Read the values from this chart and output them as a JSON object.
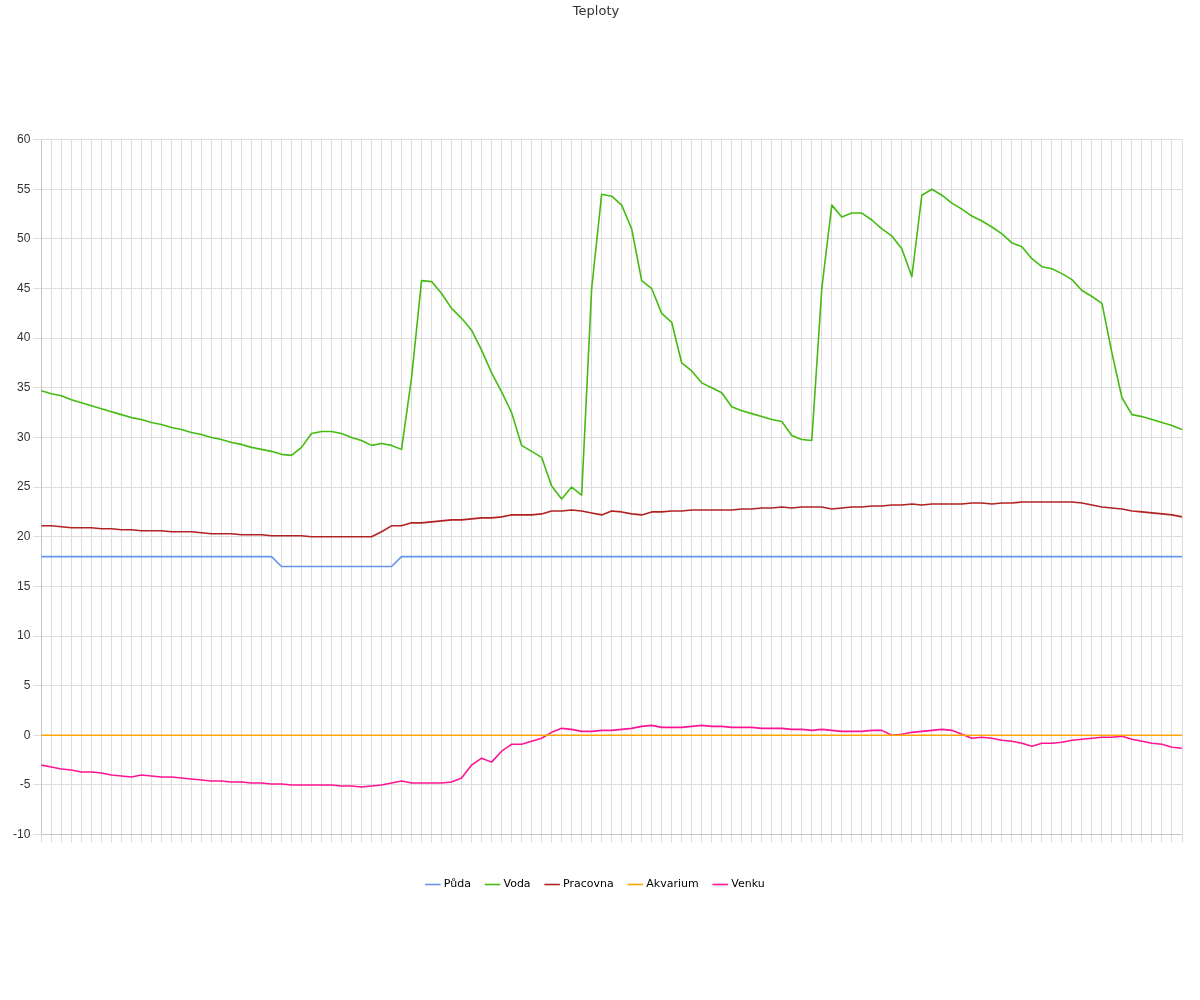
{
  "chart_data": {
    "type": "line",
    "title": "Teploty",
    "categories": [
      null,
      null,
      null,
      null,
      null,
      null,
      null,
      null,
      null,
      null,
      null,
      null,
      null,
      null,
      null,
      null,
      null,
      null,
      null,
      null,
      null,
      null,
      null,
      null,
      null,
      null,
      null,
      null,
      null,
      null,
      null,
      null,
      null,
      null,
      null,
      null,
      null,
      null,
      null,
      null,
      null,
      null,
      null,
      null,
      null,
      null,
      null,
      null,
      null,
      null,
      null,
      null,
      null,
      null,
      null,
      null,
      null,
      null,
      null,
      null,
      null,
      null,
      null,
      null,
      null,
      null,
      null,
      null,
      null,
      null,
      null,
      null,
      null,
      null,
      null,
      null,
      null,
      null,
      null,
      null,
      null,
      null,
      null,
      null,
      null,
      null,
      null,
      null,
      null,
      null,
      null,
      null,
      null,
      null,
      null,
      null,
      null,
      null,
      null,
      null,
      null,
      null,
      null,
      null,
      null,
      null,
      null,
      null,
      null,
      null,
      null,
      null,
      null,
      null,
      null
    ],
    "series": [
      {
        "name": "Půda",
        "color": "#6495ed",
        "values": [
          18,
          18,
          18,
          18,
          18,
          18,
          18,
          18,
          18,
          18,
          18,
          18,
          18,
          18,
          18,
          18,
          18,
          18,
          18,
          18,
          18,
          18,
          18,
          18,
          17,
          17,
          17,
          17,
          17,
          17,
          17,
          17,
          17,
          17,
          17,
          17,
          18,
          18,
          18,
          18,
          18,
          18,
          18,
          18,
          18,
          18,
          18,
          18,
          18,
          18,
          18,
          18,
          18,
          18,
          18,
          18,
          18,
          18,
          18,
          18,
          18,
          18,
          18,
          18,
          18,
          18,
          18,
          18,
          18,
          18,
          18,
          18,
          18,
          18,
          18,
          18,
          18,
          18,
          18,
          18,
          18,
          18,
          18,
          18,
          18,
          18,
          18,
          18,
          18,
          18,
          18,
          18,
          18,
          18,
          18,
          18,
          18,
          18,
          18,
          18,
          18,
          18,
          18,
          18,
          18,
          18,
          18,
          18,
          18,
          18,
          18,
          18,
          18,
          18,
          18
        ]
      },
      {
        "name": "Voda",
        "color": "#44bb11",
        "values": [
          34.7,
          34.4,
          34.2,
          33.8,
          33.5,
          33.2,
          32.9,
          32.6,
          32.3,
          32.0,
          31.8,
          31.5,
          31.3,
          31.0,
          30.8,
          30.5,
          30.3,
          30.0,
          29.8,
          29.5,
          29.3,
          29.0,
          28.8,
          28.6,
          28.3,
          28.2,
          29.0,
          30.4,
          30.6,
          30.6,
          30.4,
          30.0,
          29.7,
          29.2,
          29.4,
          29.2,
          28.8,
          36,
          45.8,
          45.7,
          44.5,
          43.0,
          42.0,
          40.8,
          38.8,
          36.5,
          34.6,
          32.5,
          29.2,
          28.6,
          28.0,
          25.1,
          23.8,
          25.0,
          24.2,
          45,
          54.5,
          54.3,
          53.4,
          51,
          45.8,
          45,
          42.5,
          41.6,
          37.5,
          36.7,
          35.5,
          35.0,
          34.5,
          33.1,
          32.7,
          32.4,
          32.1,
          31.8,
          31.6,
          30.2,
          29.8,
          29.7,
          45,
          53.4,
          52.2,
          52.6,
          52.6,
          51.9,
          51.0,
          50.3,
          49,
          46.2,
          54.4,
          55.0,
          54.4,
          53.6,
          53.0,
          52.3,
          51.8,
          51.2,
          50.5,
          49.6,
          49.2,
          48.0,
          47.2,
          47.0,
          46.5,
          45.9,
          44.8,
          44.2,
          43.5,
          38.5,
          34,
          32.3,
          32.1,
          31.8,
          31.5,
          31.2,
          30.8
        ]
      },
      {
        "name": "Pracovna",
        "color": "#b22222",
        "values": [
          21.1,
          21.1,
          21.0,
          20.9,
          20.9,
          20.9,
          20.8,
          20.8,
          20.7,
          20.7,
          20.6,
          20.6,
          20.6,
          20.5,
          20.5,
          20.5,
          20.4,
          20.3,
          20.3,
          20.3,
          20.2,
          20.2,
          20.2,
          20.1,
          20.1,
          20.1,
          20.1,
          20.0,
          20.0,
          20.0,
          20.0,
          20.0,
          20.0,
          20.0,
          20.5,
          21.1,
          21.1,
          21.4,
          21.4,
          21.5,
          21.6,
          21.7,
          21.7,
          21.8,
          21.9,
          21.9,
          22.0,
          22.2,
          22.2,
          22.2,
          22.3,
          22.6,
          22.6,
          22.7,
          22.6,
          22.4,
          22.2,
          22.6,
          22.5,
          22.3,
          22.2,
          22.5,
          22.5,
          22.6,
          22.6,
          22.7,
          22.7,
          22.7,
          22.7,
          22.7,
          22.8,
          22.8,
          22.9,
          22.9,
          23.0,
          22.9,
          23.0,
          23.0,
          23.0,
          22.8,
          22.9,
          23.0,
          23.0,
          23.1,
          23.1,
          23.2,
          23.2,
          23.3,
          23.2,
          23.3,
          23.3,
          23.3,
          23.3,
          23.4,
          23.4,
          23.3,
          23.4,
          23.4,
          23.5,
          23.5,
          23.5,
          23.5,
          23.5,
          23.5,
          23.4,
          23.2,
          23.0,
          22.9,
          22.8,
          22.6,
          22.5,
          22.4,
          22.3,
          22.2,
          22.0
        ]
      },
      {
        "name": "Akvarium",
        "color": "#ffa500",
        "values": [
          0,
          0,
          0,
          0,
          0,
          0,
          0,
          0,
          0,
          0,
          0,
          0,
          0,
          0,
          0,
          0,
          0,
          0,
          0,
          0,
          0,
          0,
          0,
          0,
          0,
          0,
          0,
          0,
          0,
          0,
          0,
          0,
          0,
          0,
          0,
          0,
          0,
          0,
          0,
          0,
          0,
          0,
          0,
          0,
          0,
          0,
          0,
          0,
          0,
          0,
          0,
          0,
          0,
          0,
          0,
          0,
          0,
          0,
          0,
          0,
          0,
          0,
          0,
          0,
          0,
          0,
          0,
          0,
          0,
          0,
          0,
          0,
          0,
          0,
          0,
          0,
          0,
          0,
          0,
          0,
          0,
          0,
          0,
          0,
          0,
          0,
          0,
          0,
          0,
          0,
          0,
          0,
          0,
          0,
          0,
          0,
          0,
          0,
          0,
          0,
          0,
          0,
          0,
          0,
          0,
          0,
          0,
          0,
          0,
          0,
          0,
          0,
          0,
          0,
          0
        ]
      },
      {
        "name": "Venku",
        "color": "#ff1493",
        "values": [
          -3.0,
          -3.2,
          -3.4,
          -3.5,
          -3.7,
          -3.7,
          -3.8,
          -4.0,
          -4.1,
          -4.2,
          -4.0,
          -4.1,
          -4.2,
          -4.2,
          -4.3,
          -4.4,
          -4.5,
          -4.6,
          -4.6,
          -4.7,
          -4.7,
          -4.8,
          -4.8,
          -4.9,
          -4.9,
          -5.0,
          -5.0,
          -5.0,
          -5.0,
          -5.0,
          -5.1,
          -5.1,
          -5.2,
          -5.1,
          -5.0,
          -4.8,
          -4.6,
          -4.8,
          -4.8,
          -4.8,
          -4.8,
          -4.7,
          -4.3,
          -3.0,
          -2.3,
          -2.7,
          -1.6,
          -0.9,
          -0.9,
          -0.6,
          -0.3,
          0.3,
          0.7,
          0.6,
          0.4,
          0.4,
          0.5,
          0.5,
          0.6,
          0.7,
          0.9,
          1.0,
          0.8,
          0.8,
          0.8,
          0.9,
          1.0,
          0.9,
          0.9,
          0.8,
          0.8,
          0.8,
          0.7,
          0.7,
          0.7,
          0.6,
          0.6,
          0.5,
          0.6,
          0.5,
          0.4,
          0.4,
          0.4,
          0.5,
          0.5,
          0.0,
          0.1,
          0.3,
          0.4,
          0.5,
          0.6,
          0.5,
          0.1,
          -0.3,
          -0.2,
          -0.3,
          -0.5,
          -0.6,
          -0.8,
          -1.1,
          -0.8,
          -0.8,
          -0.7,
          -0.5,
          -0.4,
          -0.3,
          -0.2,
          -0.2,
          -0.1,
          -0.4,
          -0.6,
          -0.8,
          -0.9,
          -1.2,
          -1.3
        ]
      }
    ],
    "ylim": [
      -10,
      60
    ],
    "yticks": [
      -10,
      -5,
      0,
      5,
      10,
      15,
      20,
      25,
      30,
      35,
      40,
      45,
      50,
      55,
      60
    ],
    "grid": true,
    "legend": "bottom",
    "marker": "none",
    "line_style": "solid"
  }
}
